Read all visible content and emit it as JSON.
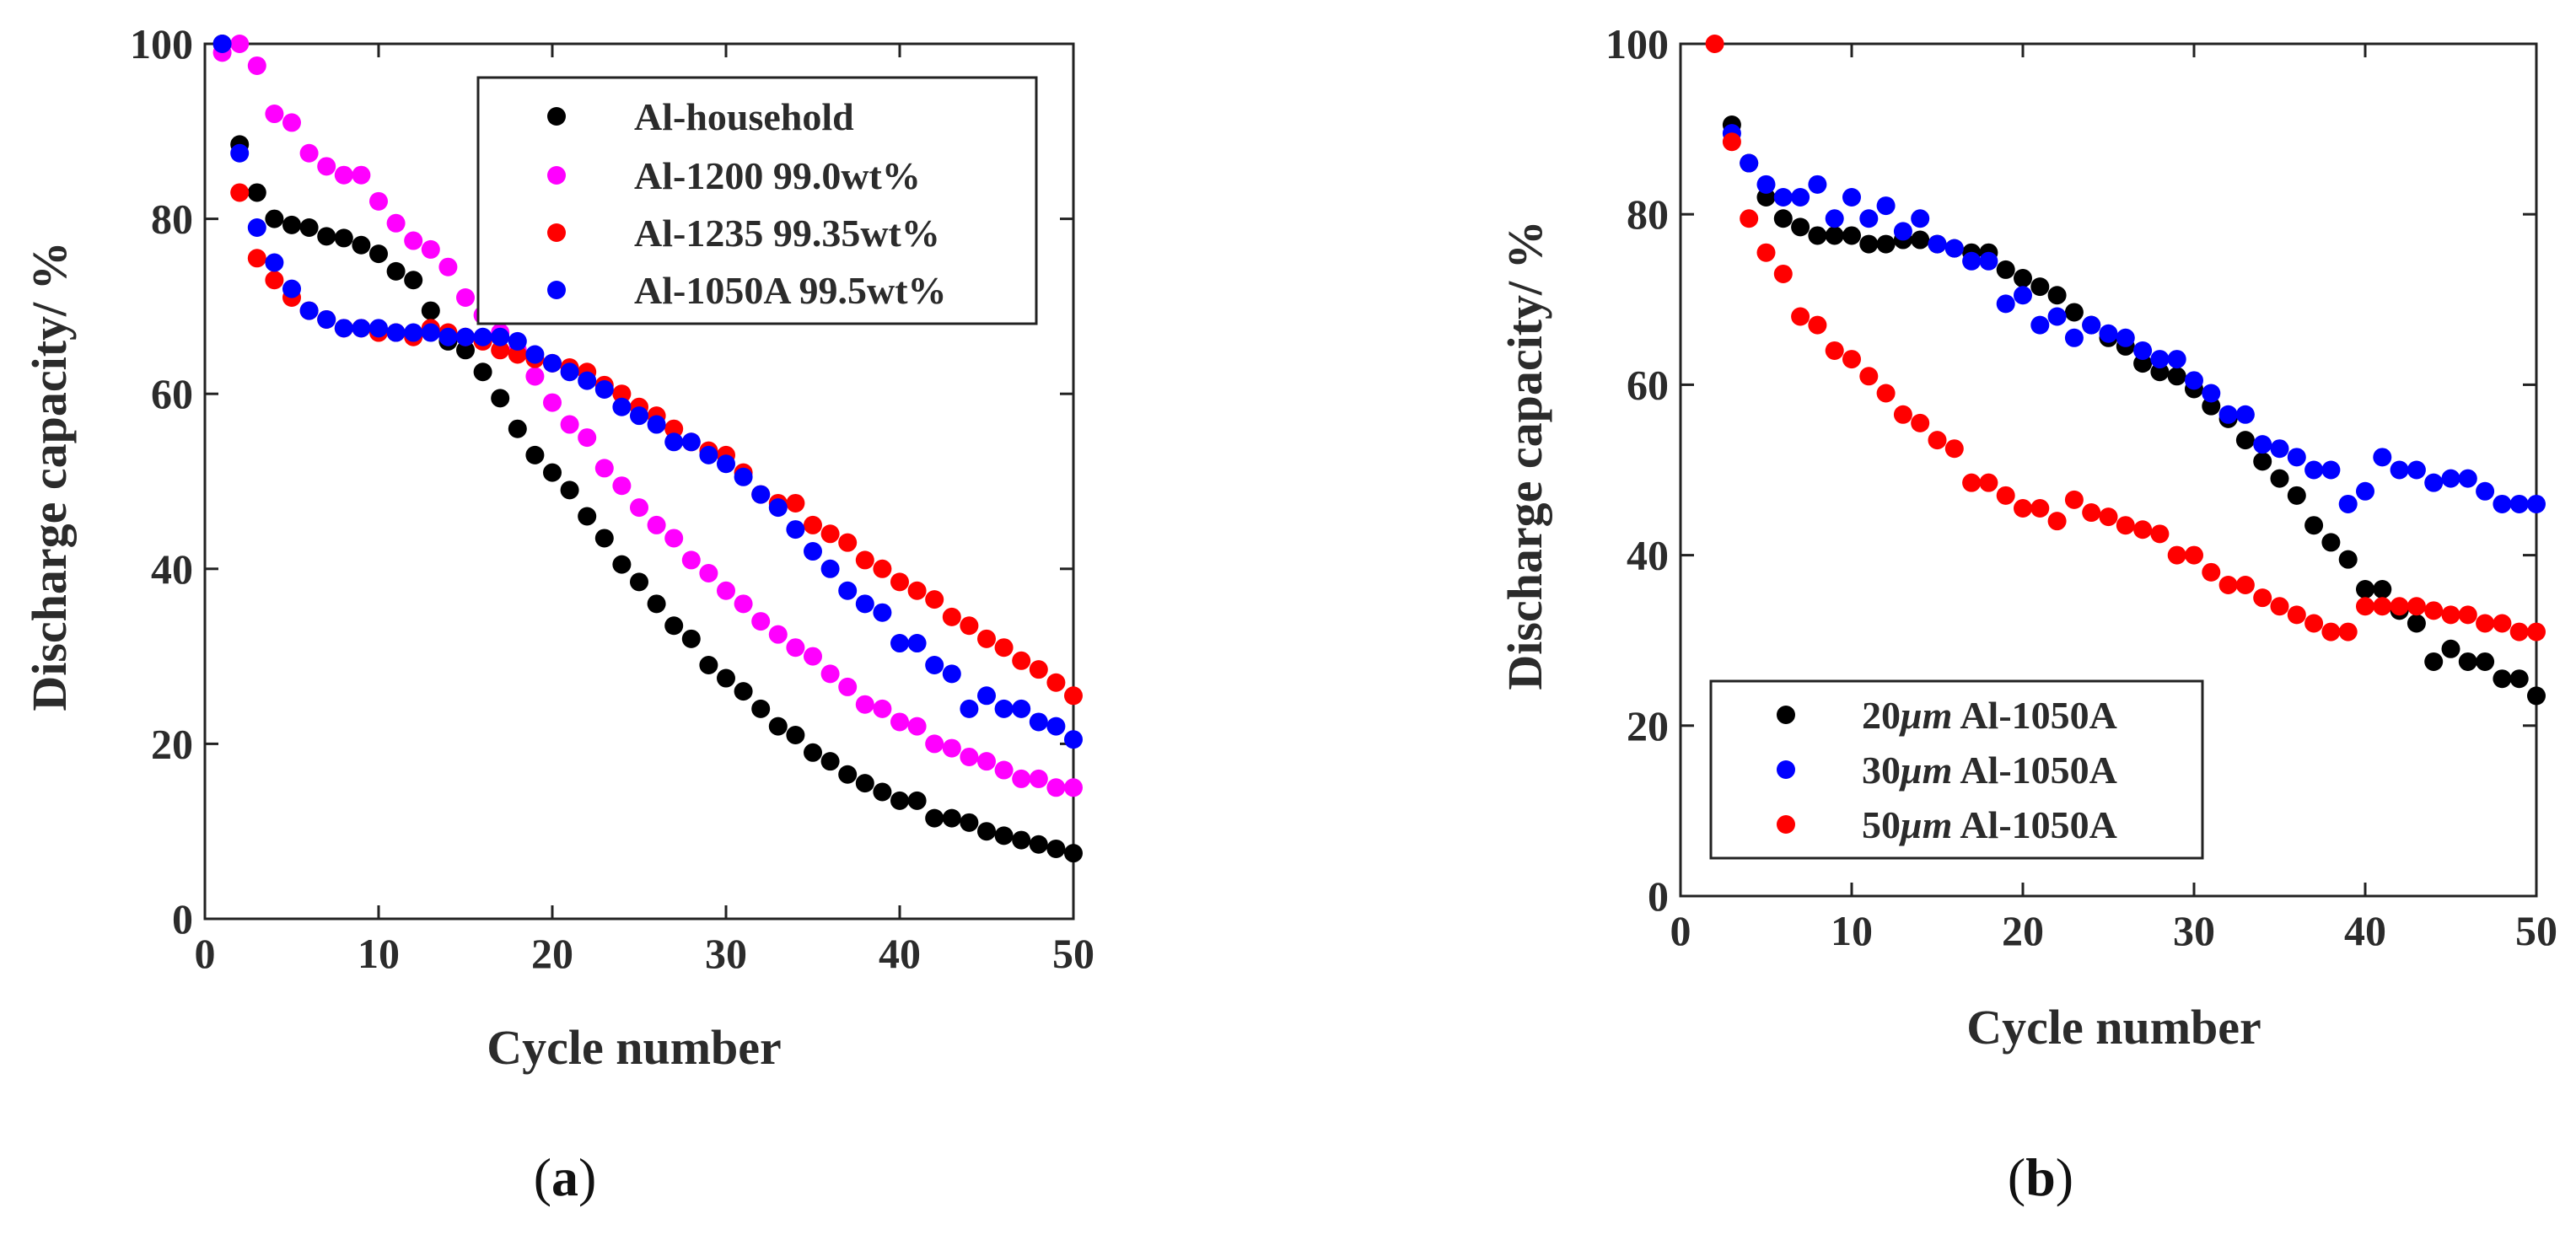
{
  "chart_data": [
    {
      "type": "scatter",
      "panel_label": "(a)",
      "panel_letter": "a",
      "xlabel": "Cycle number",
      "ylabel": "Discharge capacity/ %",
      "xlim": [
        0,
        50
      ],
      "ylim": [
        0,
        100
      ],
      "xticks": [
        "0",
        "10",
        "20",
        "30",
        "40",
        "50"
      ],
      "yticks": [
        "0",
        "20",
        "40",
        "60",
        "80",
        "100"
      ],
      "legend_position": "top-right",
      "grid": false,
      "series": [
        {
          "name": "Al-household",
          "color": "#000000",
          "x": [
            1,
            2,
            3,
            4,
            5,
            6,
            7,
            8,
            9,
            10,
            11,
            12,
            13,
            14,
            15,
            16,
            17,
            18,
            19,
            20,
            21,
            22,
            23,
            24,
            25,
            26,
            27,
            28,
            29,
            30,
            31,
            32,
            33,
            34,
            35,
            36,
            37,
            38,
            39,
            40,
            41,
            42,
            43,
            44,
            45,
            46,
            47,
            48,
            49,
            50
          ],
          "y": [
            100,
            88.5,
            83,
            80,
            79.3,
            79,
            78,
            77.8,
            77,
            76,
            74,
            73,
            69.5,
            66,
            65,
            62.5,
            59.5,
            56,
            53,
            51,
            49,
            46,
            43.5,
            40.5,
            38.5,
            36,
            33.5,
            32,
            29,
            27.5,
            26,
            24,
            22,
            21,
            19,
            18,
            16.5,
            15.5,
            14.5,
            13.5,
            13.5,
            11.5,
            11.5,
            11,
            10,
            9.5,
            9,
            8.5,
            8,
            7.5
          ]
        },
        {
          "name": "Al-1200 99.0wt%",
          "color": "#ff00ff",
          "x": [
            1,
            2,
            3,
            4,
            5,
            6,
            7,
            8,
            9,
            10,
            11,
            12,
            13,
            14,
            15,
            16,
            17,
            18,
            19,
            20,
            21,
            22,
            23,
            24,
            25,
            26,
            27,
            28,
            29,
            30,
            31,
            32,
            33,
            34,
            35,
            36,
            37,
            38,
            39,
            40,
            41,
            42,
            43,
            44,
            45,
            46,
            47,
            48,
            49,
            50
          ],
          "y": [
            99,
            100,
            97.5,
            92,
            91,
            87.5,
            86,
            85,
            85,
            82,
            79.5,
            77.5,
            76.5,
            74.5,
            71,
            69,
            67,
            65,
            62,
            59,
            56.5,
            55,
            51.5,
            49.5,
            47,
            45,
            43.5,
            41,
            39.5,
            37.5,
            36,
            34,
            32.5,
            31,
            30,
            28,
            26.5,
            24.5,
            24,
            22.5,
            22,
            20,
            19.5,
            18.5,
            18,
            17,
            16,
            16,
            15,
            15
          ]
        },
        {
          "name": "Al-1235 99.35wt%",
          "color": "#ff0000",
          "x": [
            2,
            3,
            4,
            5,
            6,
            7,
            8,
            9,
            10,
            11,
            12,
            13,
            14,
            15,
            16,
            17,
            18,
            19,
            20,
            21,
            22,
            23,
            24,
            25,
            26,
            27,
            28,
            29,
            30,
            31,
            32,
            33,
            34,
            35,
            36,
            37,
            38,
            39,
            40,
            41,
            42,
            43,
            44,
            45,
            46,
            47,
            48,
            49,
            50
          ],
          "y": [
            83,
            75.5,
            73,
            71,
            69.5,
            68.5,
            67.5,
            67.5,
            67,
            67,
            66.5,
            67.5,
            67,
            66.5,
            66,
            65,
            64.5,
            64,
            63.5,
            63,
            62.5,
            61,
            60,
            58.5,
            57.5,
            56,
            54.5,
            53.5,
            53,
            51,
            48.5,
            47.5,
            47.5,
            45,
            44,
            43,
            41,
            40,
            38.5,
            37.5,
            36.5,
            34.5,
            33.5,
            32,
            31,
            29.5,
            28.5,
            27,
            25.5
          ]
        },
        {
          "name": "Al-1050A 99.5wt%",
          "color": "#0000ff",
          "x": [
            1,
            2,
            3,
            4,
            5,
            6,
            7,
            8,
            9,
            10,
            11,
            12,
            13,
            14,
            15,
            16,
            17,
            18,
            19,
            20,
            21,
            22,
            23,
            24,
            25,
            26,
            27,
            28,
            29,
            30,
            31,
            32,
            33,
            34,
            35,
            36,
            37,
            38,
            39,
            40,
            41,
            42,
            43,
            44,
            45,
            46,
            47,
            48,
            49,
            50
          ],
          "y": [
            100,
            87.5,
            79,
            75,
            72,
            69.5,
            68.5,
            67.5,
            67.5,
            67.5,
            67,
            67,
            67,
            66.5,
            66.5,
            66.5,
            66.5,
            66,
            64.5,
            63.5,
            62.5,
            61.5,
            60.5,
            58.5,
            57.5,
            56.5,
            54.5,
            54.5,
            53,
            52,
            50.5,
            48.5,
            47,
            44.5,
            42,
            40,
            37.5,
            36,
            35,
            31.5,
            31.5,
            29,
            28,
            24,
            25.5,
            24,
            24,
            22.5,
            22,
            20.5
          ]
        }
      ]
    },
    {
      "type": "scatter",
      "panel_label": "(b)",
      "panel_letter": "b",
      "xlabel": "Cycle number",
      "ylabel": "Discharge capacity/ %",
      "xlim": [
        0,
        50
      ],
      "ylim": [
        0,
        100
      ],
      "xticks": [
        "0",
        "10",
        "20",
        "30",
        "40",
        "50"
      ],
      "yticks": [
        "0",
        "20",
        "40",
        "60",
        "80",
        "100"
      ],
      "legend_position": "bottom-left",
      "grid": false,
      "series": [
        {
          "name": "20μm Al-1050A",
          "legend_num": "20",
          "legend_unit": "μm",
          "legend_rest": " Al-1050A",
          "color": "#000000",
          "x": [
            3,
            4,
            5,
            6,
            7,
            8,
            9,
            10,
            11,
            12,
            13,
            14,
            15,
            16,
            17,
            18,
            19,
            20,
            21,
            22,
            23,
            24,
            25,
            26,
            27,
            28,
            29,
            30,
            31,
            32,
            33,
            34,
            35,
            36,
            37,
            38,
            39,
            40,
            41,
            42,
            43,
            44,
            45,
            46,
            47,
            48,
            49,
            50
          ],
          "y": [
            90.5,
            86,
            82,
            79.5,
            78.5,
            77.5,
            77.5,
            77.5,
            76.5,
            76.5,
            77,
            77,
            76.5,
            76,
            75.5,
            75.5,
            73.5,
            72.5,
            71.5,
            70.5,
            68.5,
            67,
            65.5,
            64.5,
            62.5,
            61.5,
            61,
            59.5,
            57.5,
            56,
            53.5,
            51,
            49,
            47,
            43.5,
            41.5,
            39.5,
            36,
            36,
            33.5,
            32,
            27.5,
            29,
            27.5,
            27.5,
            25.5,
            25.5,
            23.5
          ]
        },
        {
          "name": "30μm Al-1050A",
          "legend_num": "30",
          "legend_unit": "μm",
          "legend_rest": " Al-1050A",
          "color": "#0000ff",
          "x": [
            3,
            4,
            5,
            6,
            7,
            8,
            9,
            10,
            11,
            12,
            13,
            14,
            15,
            16,
            17,
            18,
            19,
            20,
            21,
            22,
            23,
            24,
            25,
            26,
            27,
            28,
            29,
            30,
            31,
            32,
            33,
            34,
            35,
            36,
            37,
            38,
            39,
            40,
            41,
            42,
            43,
            44,
            45,
            46,
            47,
            48,
            49,
            50
          ],
          "y": [
            89.5,
            86,
            83.5,
            82,
            82,
            83.5,
            79.5,
            82,
            79.5,
            81,
            78,
            79.5,
            76.5,
            76,
            74.5,
            74.5,
            69.5,
            70.5,
            67,
            68,
            65.5,
            67,
            66,
            65.5,
            64,
            63,
            63,
            60.5,
            59,
            56.5,
            56.5,
            53,
            52.5,
            51.5,
            50,
            50,
            46,
            47.5,
            51.5,
            50,
            50,
            48.5,
            49,
            49,
            47.5,
            46,
            46,
            46
          ]
        },
        {
          "name": "50μm Al-1050A",
          "legend_num": "50",
          "legend_unit": "μm",
          "legend_rest": " Al-1050A",
          "color": "#ff0000",
          "x": [
            2,
            3,
            4,
            5,
            6,
            7,
            8,
            9,
            10,
            11,
            12,
            13,
            14,
            15,
            16,
            17,
            18,
            19,
            20,
            21,
            22,
            23,
            24,
            25,
            26,
            27,
            28,
            29,
            30,
            31,
            32,
            33,
            34,
            35,
            36,
            37,
            38,
            39,
            40,
            41,
            42,
            43,
            44,
            45,
            46,
            47,
            48,
            49,
            50
          ],
          "y": [
            100,
            88.5,
            79.5,
            75.5,
            73,
            68,
            67,
            64,
            63,
            61,
            59,
            56.5,
            55.5,
            53.5,
            52.5,
            48.5,
            48.5,
            47,
            45.5,
            45.5,
            44,
            46.5,
            45,
            44.5,
            43.5,
            43,
            42.5,
            40,
            40,
            38,
            36.5,
            36.5,
            35,
            34,
            33,
            32,
            31,
            31,
            34,
            34,
            34,
            34,
            33.5,
            33,
            33,
            32,
            32,
            31,
            31
          ]
        }
      ]
    }
  ]
}
